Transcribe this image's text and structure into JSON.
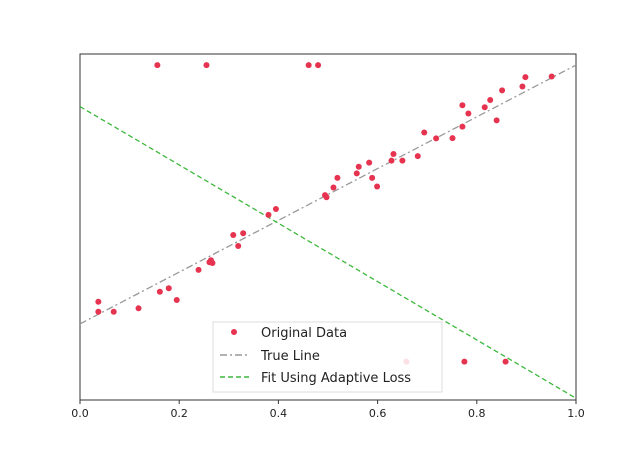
{
  "chart_data": {
    "type": "scatter",
    "title": "",
    "xlabel": "",
    "ylabel": "",
    "xlim": [
      0,
      1
    ],
    "ylim": [
      0,
      1
    ],
    "y_ticks_shown": false,
    "grid": false,
    "legend_placement": "lower-center",
    "x_ticks": [
      "0.0",
      "0.2",
      "0.4",
      "0.6",
      "0.8",
      "1.0"
    ],
    "x_tick_values": [
      0,
      0.2,
      0.4,
      0.6,
      0.8,
      1.0
    ],
    "series": [
      {
        "name": "Original Data",
        "kind": "scatter",
        "color": "#e6334f",
        "points": [
          [
            0.156,
            0.968
          ],
          [
            0.255,
            0.968
          ],
          [
            0.461,
            0.968
          ],
          [
            0.48,
            0.968
          ],
          [
            0.037,
            0.284
          ],
          [
            0.037,
            0.255
          ],
          [
            0.068,
            0.255
          ],
          [
            0.118,
            0.265
          ],
          [
            0.161,
            0.313
          ],
          [
            0.179,
            0.323
          ],
          [
            0.195,
            0.289
          ],
          [
            0.239,
            0.376
          ],
          [
            0.261,
            0.398
          ],
          [
            0.264,
            0.404
          ],
          [
            0.267,
            0.396
          ],
          [
            0.309,
            0.477
          ],
          [
            0.319,
            0.445
          ],
          [
            0.329,
            0.482
          ],
          [
            0.38,
            0.535
          ],
          [
            0.395,
            0.552
          ],
          [
            0.494,
            0.592
          ],
          [
            0.497,
            0.586
          ],
          [
            0.511,
            0.614
          ],
          [
            0.519,
            0.642
          ],
          [
            0.558,
            0.655
          ],
          [
            0.562,
            0.674
          ],
          [
            0.583,
            0.686
          ],
          [
            0.589,
            0.642
          ],
          [
            0.599,
            0.617
          ],
          [
            0.628,
            0.692
          ],
          [
            0.632,
            0.711
          ],
          [
            0.65,
            0.692
          ],
          [
            0.681,
            0.705
          ],
          [
            0.694,
            0.773
          ],
          [
            0.718,
            0.756
          ],
          [
            0.751,
            0.757
          ],
          [
            0.771,
            0.852
          ],
          [
            0.771,
            0.79
          ],
          [
            0.783,
            0.828
          ],
          [
            0.816,
            0.846
          ],
          [
            0.827,
            0.867
          ],
          [
            0.84,
            0.808
          ],
          [
            0.851,
            0.895
          ],
          [
            0.892,
            0.906
          ],
          [
            0.898,
            0.933
          ],
          [
            0.951,
            0.935
          ],
          [
            0.658,
            0.111
          ],
          [
            0.775,
            0.111
          ],
          [
            0.858,
            0.111
          ]
        ]
      },
      {
        "name": "True Line",
        "kind": "line",
        "style": "dashdot",
        "color": "#999999",
        "points": [
          [
            0,
            0.22
          ],
          [
            1,
            0.968
          ]
        ]
      },
      {
        "name": "Fit Using Adaptive Loss",
        "kind": "line",
        "style": "dashed",
        "color": "#3cb83c",
        "points": [
          [
            0,
            0.848
          ],
          [
            1,
            0.005
          ]
        ]
      }
    ]
  }
}
